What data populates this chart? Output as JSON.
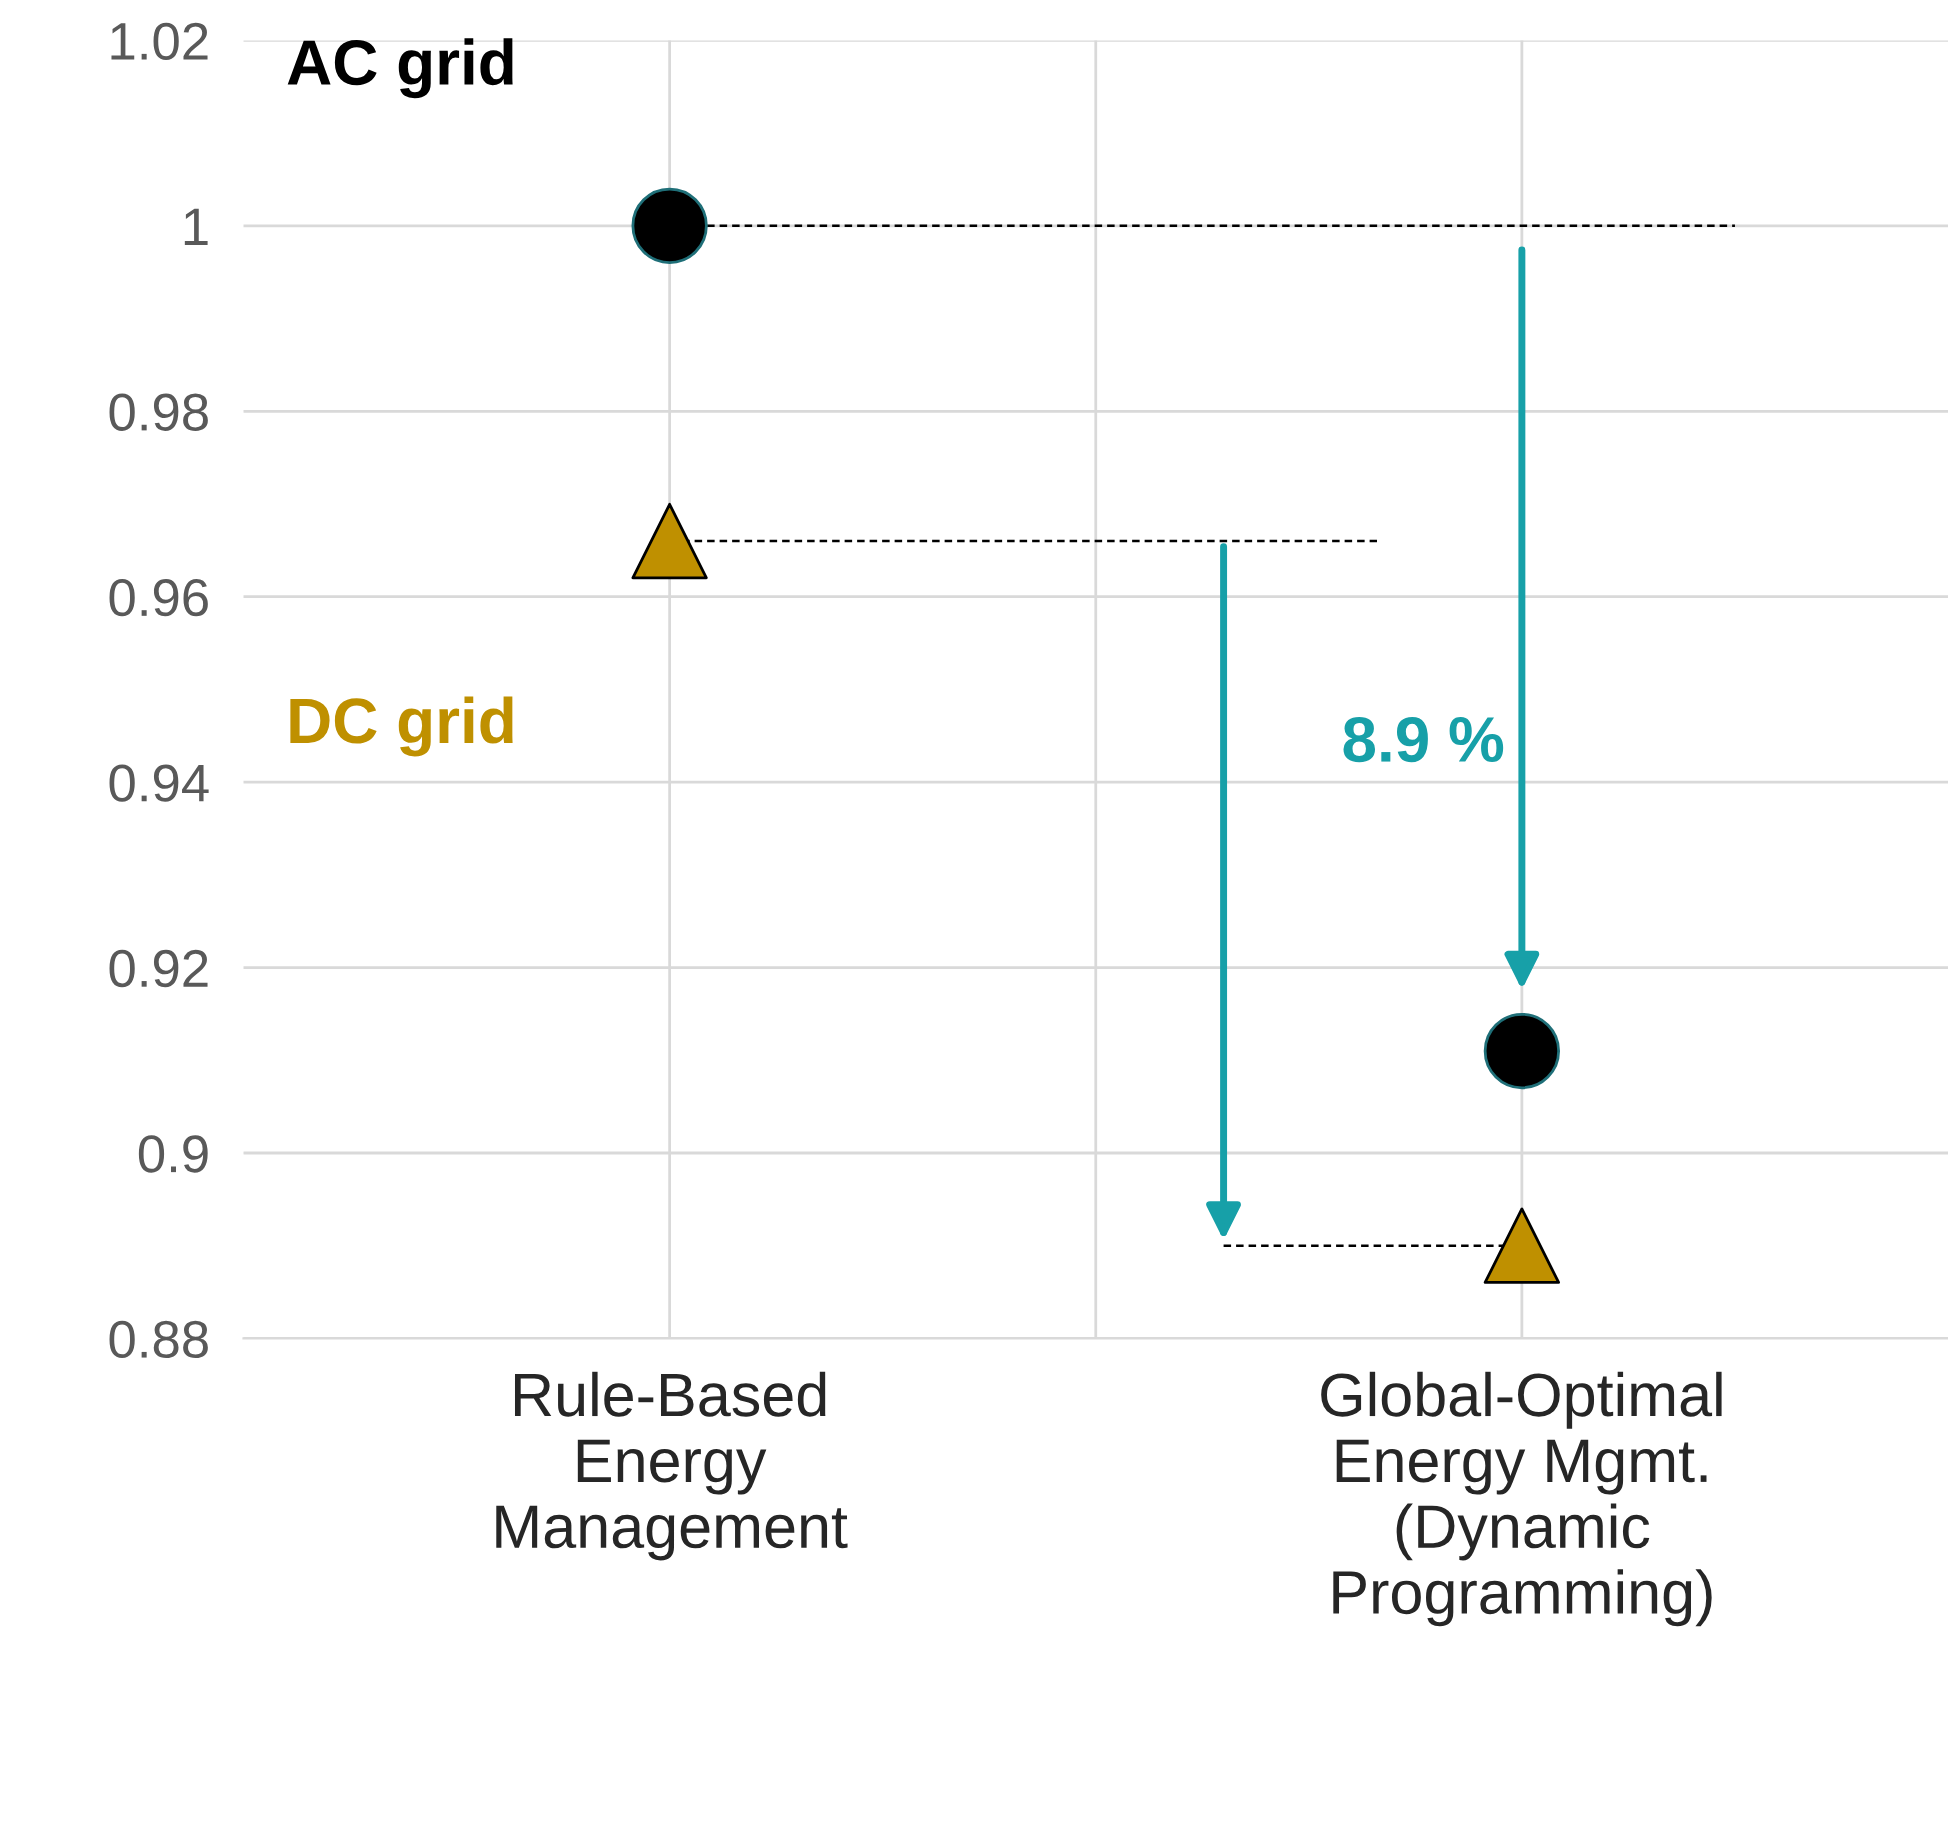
{
  "chart_data": {
    "type": "scatter",
    "categories": [
      "Rule-Based\nEnergy\nManagement",
      "Global-Optimal\nEnergy Mgmt.\n(Dynamic\nProgramming)"
    ],
    "series": [
      {
        "name": "AC grid",
        "color": "#000000",
        "marker": "circle",
        "values": [
          1.0,
          0.911
        ]
      },
      {
        "name": "DC grid",
        "color": "#bf9000",
        "marker": "triangle",
        "values": [
          0.966,
          0.89
        ]
      }
    ],
    "ylim": [
      0.88,
      1.02
    ],
    "yticks": [
      0.88,
      0.9,
      0.92,
      0.94,
      0.96,
      0.98,
      {
        "value": 1.0,
        "label": "1"
      },
      1.02
    ],
    "grid": true,
    "legend": false,
    "ref_lines": [
      {
        "axis": "y",
        "value": 1.0,
        "color": "#000000",
        "line_style": "dashed"
      },
      {
        "axis": "y",
        "value": 0.966,
        "color": "#000000",
        "line_style": "dashed"
      },
      {
        "axis": "y",
        "value": 0.89,
        "color": "#000000",
        "line_style": "dashed"
      }
    ],
    "annotations": [
      "8.9 %"
    ]
  }
}
